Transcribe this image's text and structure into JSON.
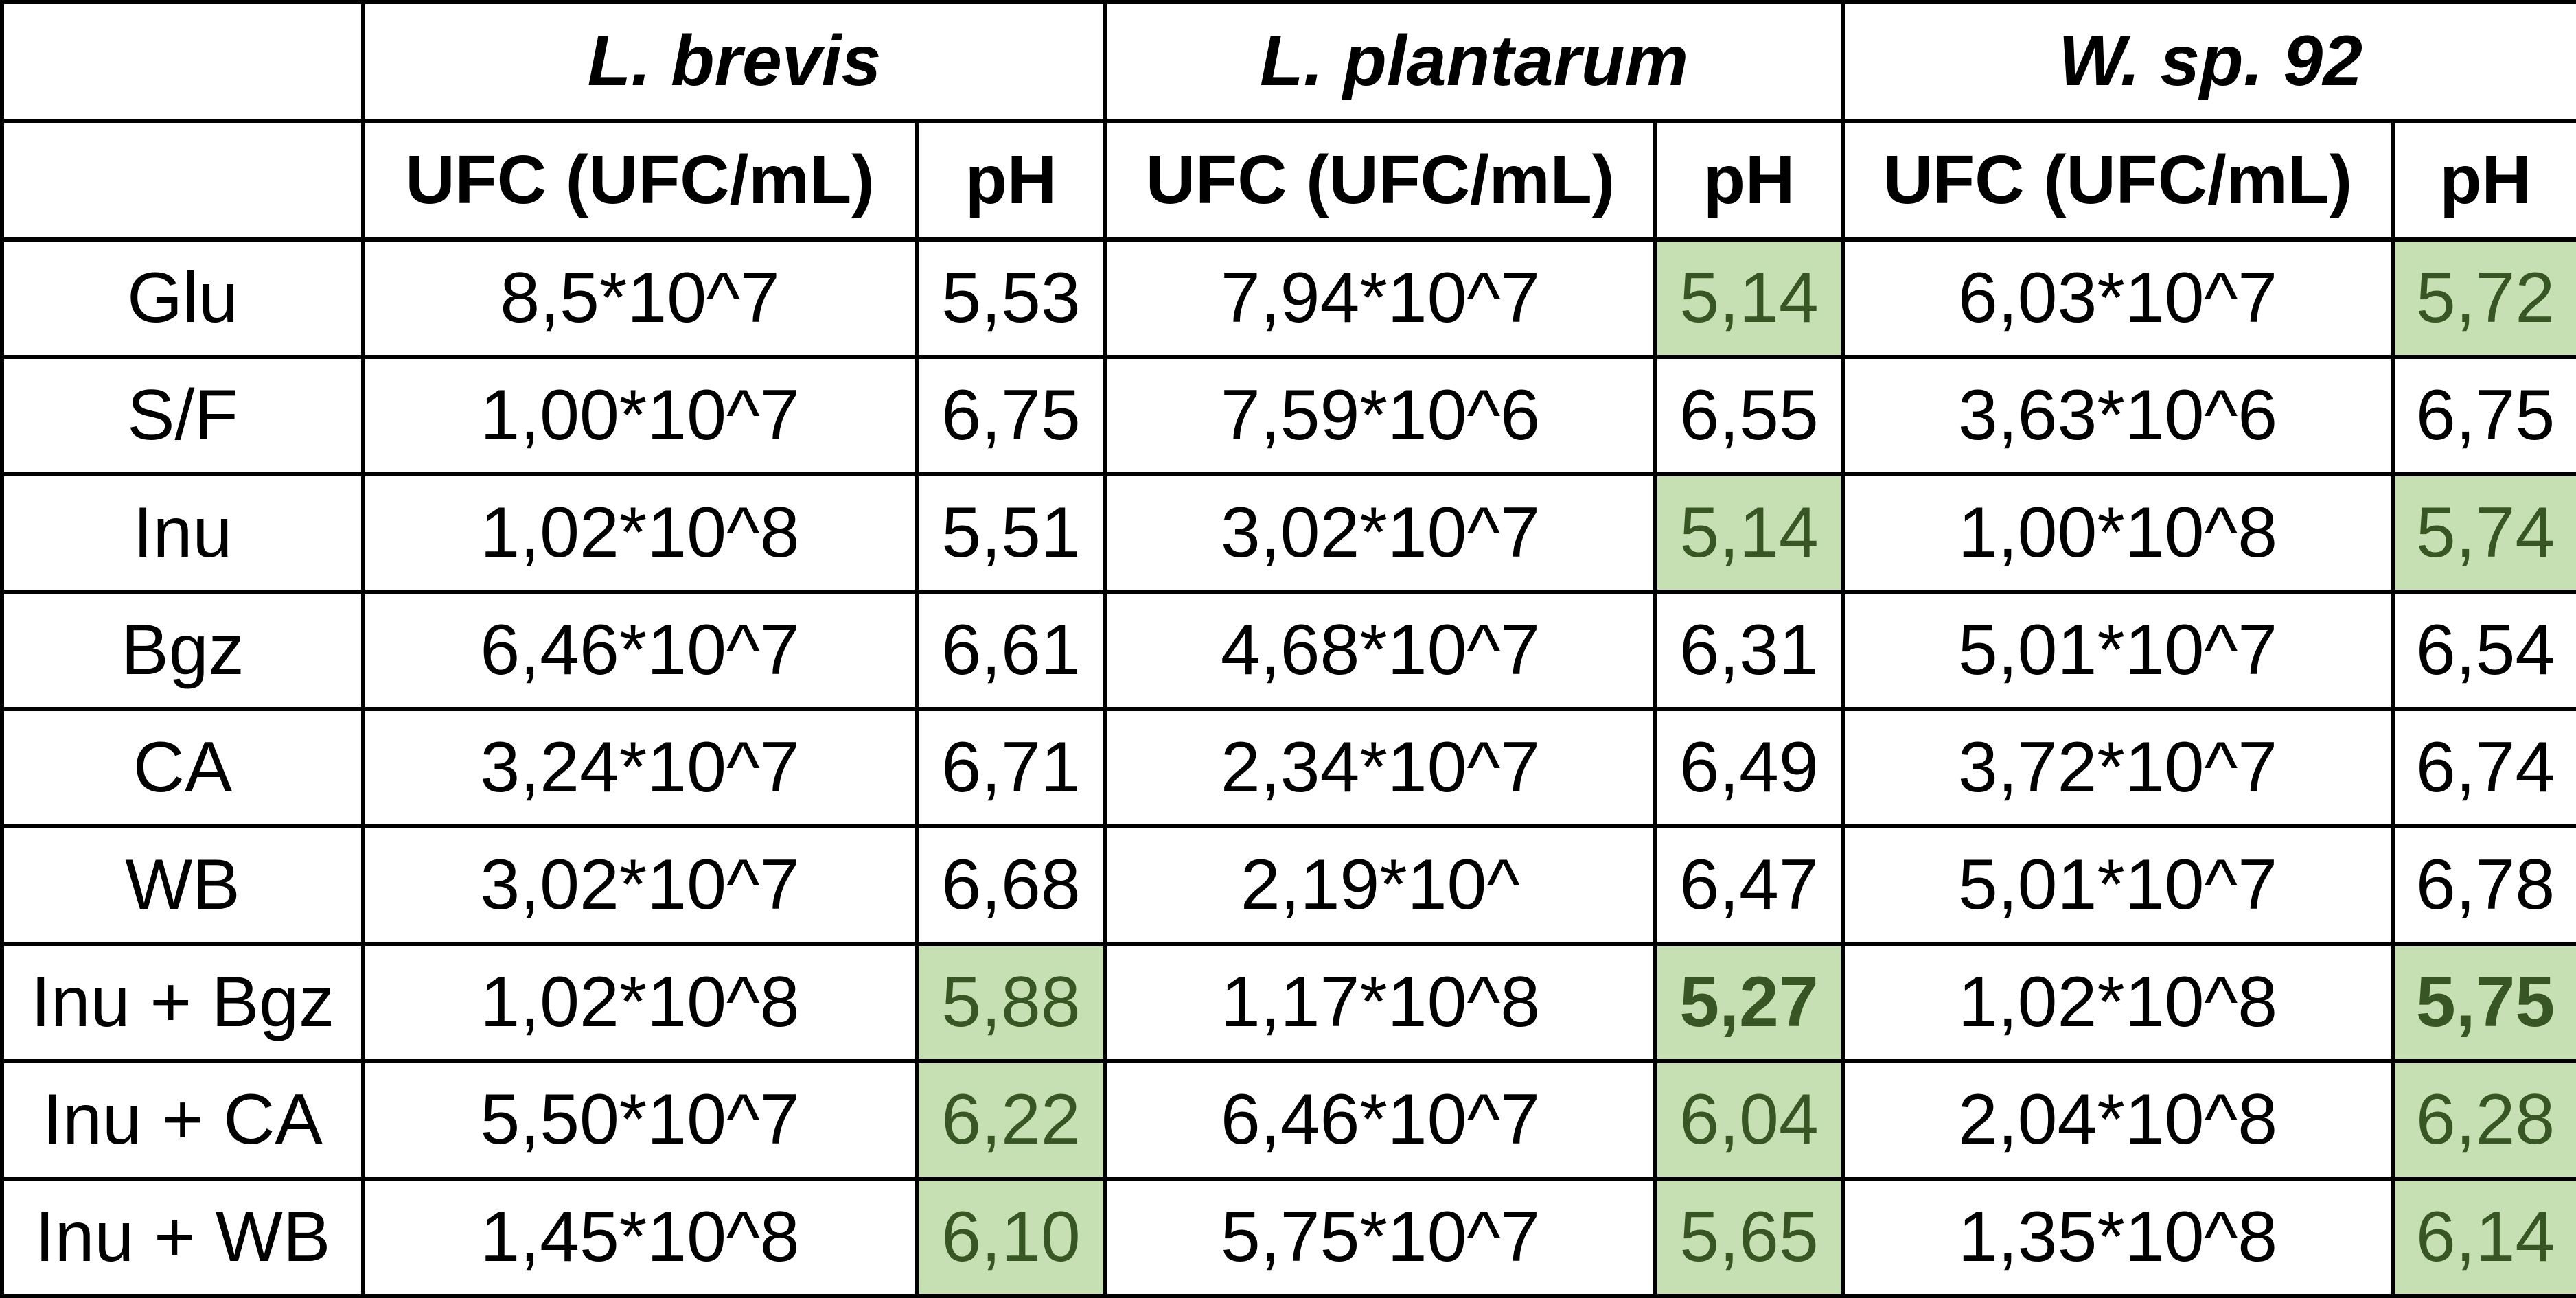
{
  "columns": {
    "species": [
      "L. brevis",
      "L. plantarum",
      "W. sp. 92"
    ],
    "ufc_label": "UFC (UFC/mL)",
    "ph_label": "pH"
  },
  "rows": [
    {
      "label": "Glu",
      "cells": [
        {
          "v": "8,5*10^7"
        },
        {
          "v": "5,53"
        },
        {
          "v": "7,94*10^7"
        },
        {
          "v": "5,14",
          "highlight": true
        },
        {
          "v": "6,03*10^7"
        },
        {
          "v": "5,72",
          "highlight": true
        }
      ]
    },
    {
      "label": "S/F",
      "cells": [
        {
          "v": "1,00*10^7"
        },
        {
          "v": "6,75"
        },
        {
          "v": "7,59*10^6"
        },
        {
          "v": "6,55"
        },
        {
          "v": "3,63*10^6"
        },
        {
          "v": "6,75"
        }
      ]
    },
    {
      "label": "Inu",
      "cells": [
        {
          "v": "1,02*10^8"
        },
        {
          "v": "5,51"
        },
        {
          "v": "3,02*10^7"
        },
        {
          "v": "5,14",
          "highlight": true
        },
        {
          "v": "1,00*10^8"
        },
        {
          "v": "5,74",
          "highlight": true
        }
      ]
    },
    {
      "label": "Bgz",
      "cells": [
        {
          "v": "6,46*10^7"
        },
        {
          "v": "6,61"
        },
        {
          "v": "4,68*10^7"
        },
        {
          "v": "6,31"
        },
        {
          "v": "5,01*10^7"
        },
        {
          "v": "6,54"
        }
      ]
    },
    {
      "label": "CA",
      "cells": [
        {
          "v": "3,24*10^7"
        },
        {
          "v": "6,71"
        },
        {
          "v": "2,34*10^7"
        },
        {
          "v": "6,49"
        },
        {
          "v": "3,72*10^7"
        },
        {
          "v": "6,74"
        }
      ]
    },
    {
      "label": "WB",
      "cells": [
        {
          "v": "3,02*10^7"
        },
        {
          "v": "6,68"
        },
        {
          "v": "2,19*10^"
        },
        {
          "v": "6,47"
        },
        {
          "v": "5,01*10^7"
        },
        {
          "v": "6,78"
        }
      ]
    },
    {
      "label": "Inu + Bgz",
      "cells": [
        {
          "v": "1,02*10^8"
        },
        {
          "v": "5,88",
          "highlight": true
        },
        {
          "v": "1,17*10^8"
        },
        {
          "v": "5,27",
          "highlight": true,
          "bold": true
        },
        {
          "v": "1,02*10^8"
        },
        {
          "v": "5,75",
          "highlight": true,
          "bold": true
        }
      ]
    },
    {
      "label": "Inu + CA",
      "cells": [
        {
          "v": "5,50*10^7"
        },
        {
          "v": "6,22",
          "highlight": true
        },
        {
          "v": "6,46*10^7"
        },
        {
          "v": "6,04",
          "highlight": true
        },
        {
          "v": "2,04*10^8"
        },
        {
          "v": "6,28",
          "highlight": true
        }
      ]
    },
    {
      "label": "Inu + WB",
      "cells": [
        {
          "v": "1,45*10^8"
        },
        {
          "v": "6,10",
          "highlight": true
        },
        {
          "v": "5,75*10^7"
        },
        {
          "v": "5,65",
          "highlight": true
        },
        {
          "v": "1,35*10^8"
        },
        {
          "v": "6,14",
          "highlight": true
        }
      ]
    }
  ],
  "colors": {
    "highlight_bg": "#c6e0b4",
    "highlight_text": "#375623",
    "border": "#000000"
  }
}
